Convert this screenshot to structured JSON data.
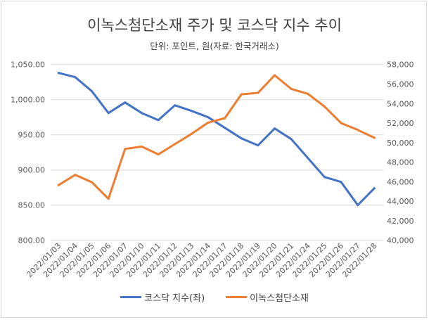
{
  "chart_data": {
    "type": "line",
    "title": "이녹스첨단소재 주가 및 코스닥 지수 추이",
    "subtitle": "단위: 포인트, 원(자료: 한국거래소)",
    "categories": [
      "2022/01/03",
      "2022/01/04",
      "2022/01/05",
      "2022/01/06",
      "2022/01/07",
      "2022/01/10",
      "2022/01/11",
      "2022/01/12",
      "2022/01/13",
      "2022/01/14",
      "2022/01/17",
      "2022/01/18",
      "2022/01/19",
      "2022/01/20",
      "2022/01/21",
      "2022/01/24",
      "2022/01/25",
      "2022/01/26",
      "2022/01/27",
      "2022/01/28"
    ],
    "series": [
      {
        "name": "코스닥 지수(좌)",
        "axis": "left",
        "color": "#4472c4",
        "values": [
          1038,
          1032,
          1012,
          981,
          996,
          981,
          971,
          992,
          984,
          975,
          960,
          945,
          935,
          959,
          944,
          917,
          890,
          883,
          850,
          874
        ]
      },
      {
        "name": "이녹스첨단소재",
        "axis": "right",
        "color": "#ed7d31",
        "values": [
          45650,
          46700,
          45950,
          44250,
          49350,
          49600,
          48800,
          49850,
          50900,
          52050,
          52500,
          54950,
          55100,
          56900,
          55500,
          55000,
          53700,
          52000,
          51300,
          50500
        ]
      }
    ],
    "left_axis": {
      "ylim": [
        800,
        1050
      ],
      "ticks": [
        "800.00",
        "850.00",
        "900.00",
        "950.00",
        "1,000.00",
        "1,050.00"
      ]
    },
    "right_axis": {
      "ylim": [
        40000,
        58000
      ],
      "ticks": [
        "40,000",
        "42,000",
        "44,000",
        "46,000",
        "48,000",
        "50,000",
        "52,000",
        "54,000",
        "56,000",
        "58,000"
      ]
    },
    "grid": true,
    "legend_position": "bottom"
  }
}
